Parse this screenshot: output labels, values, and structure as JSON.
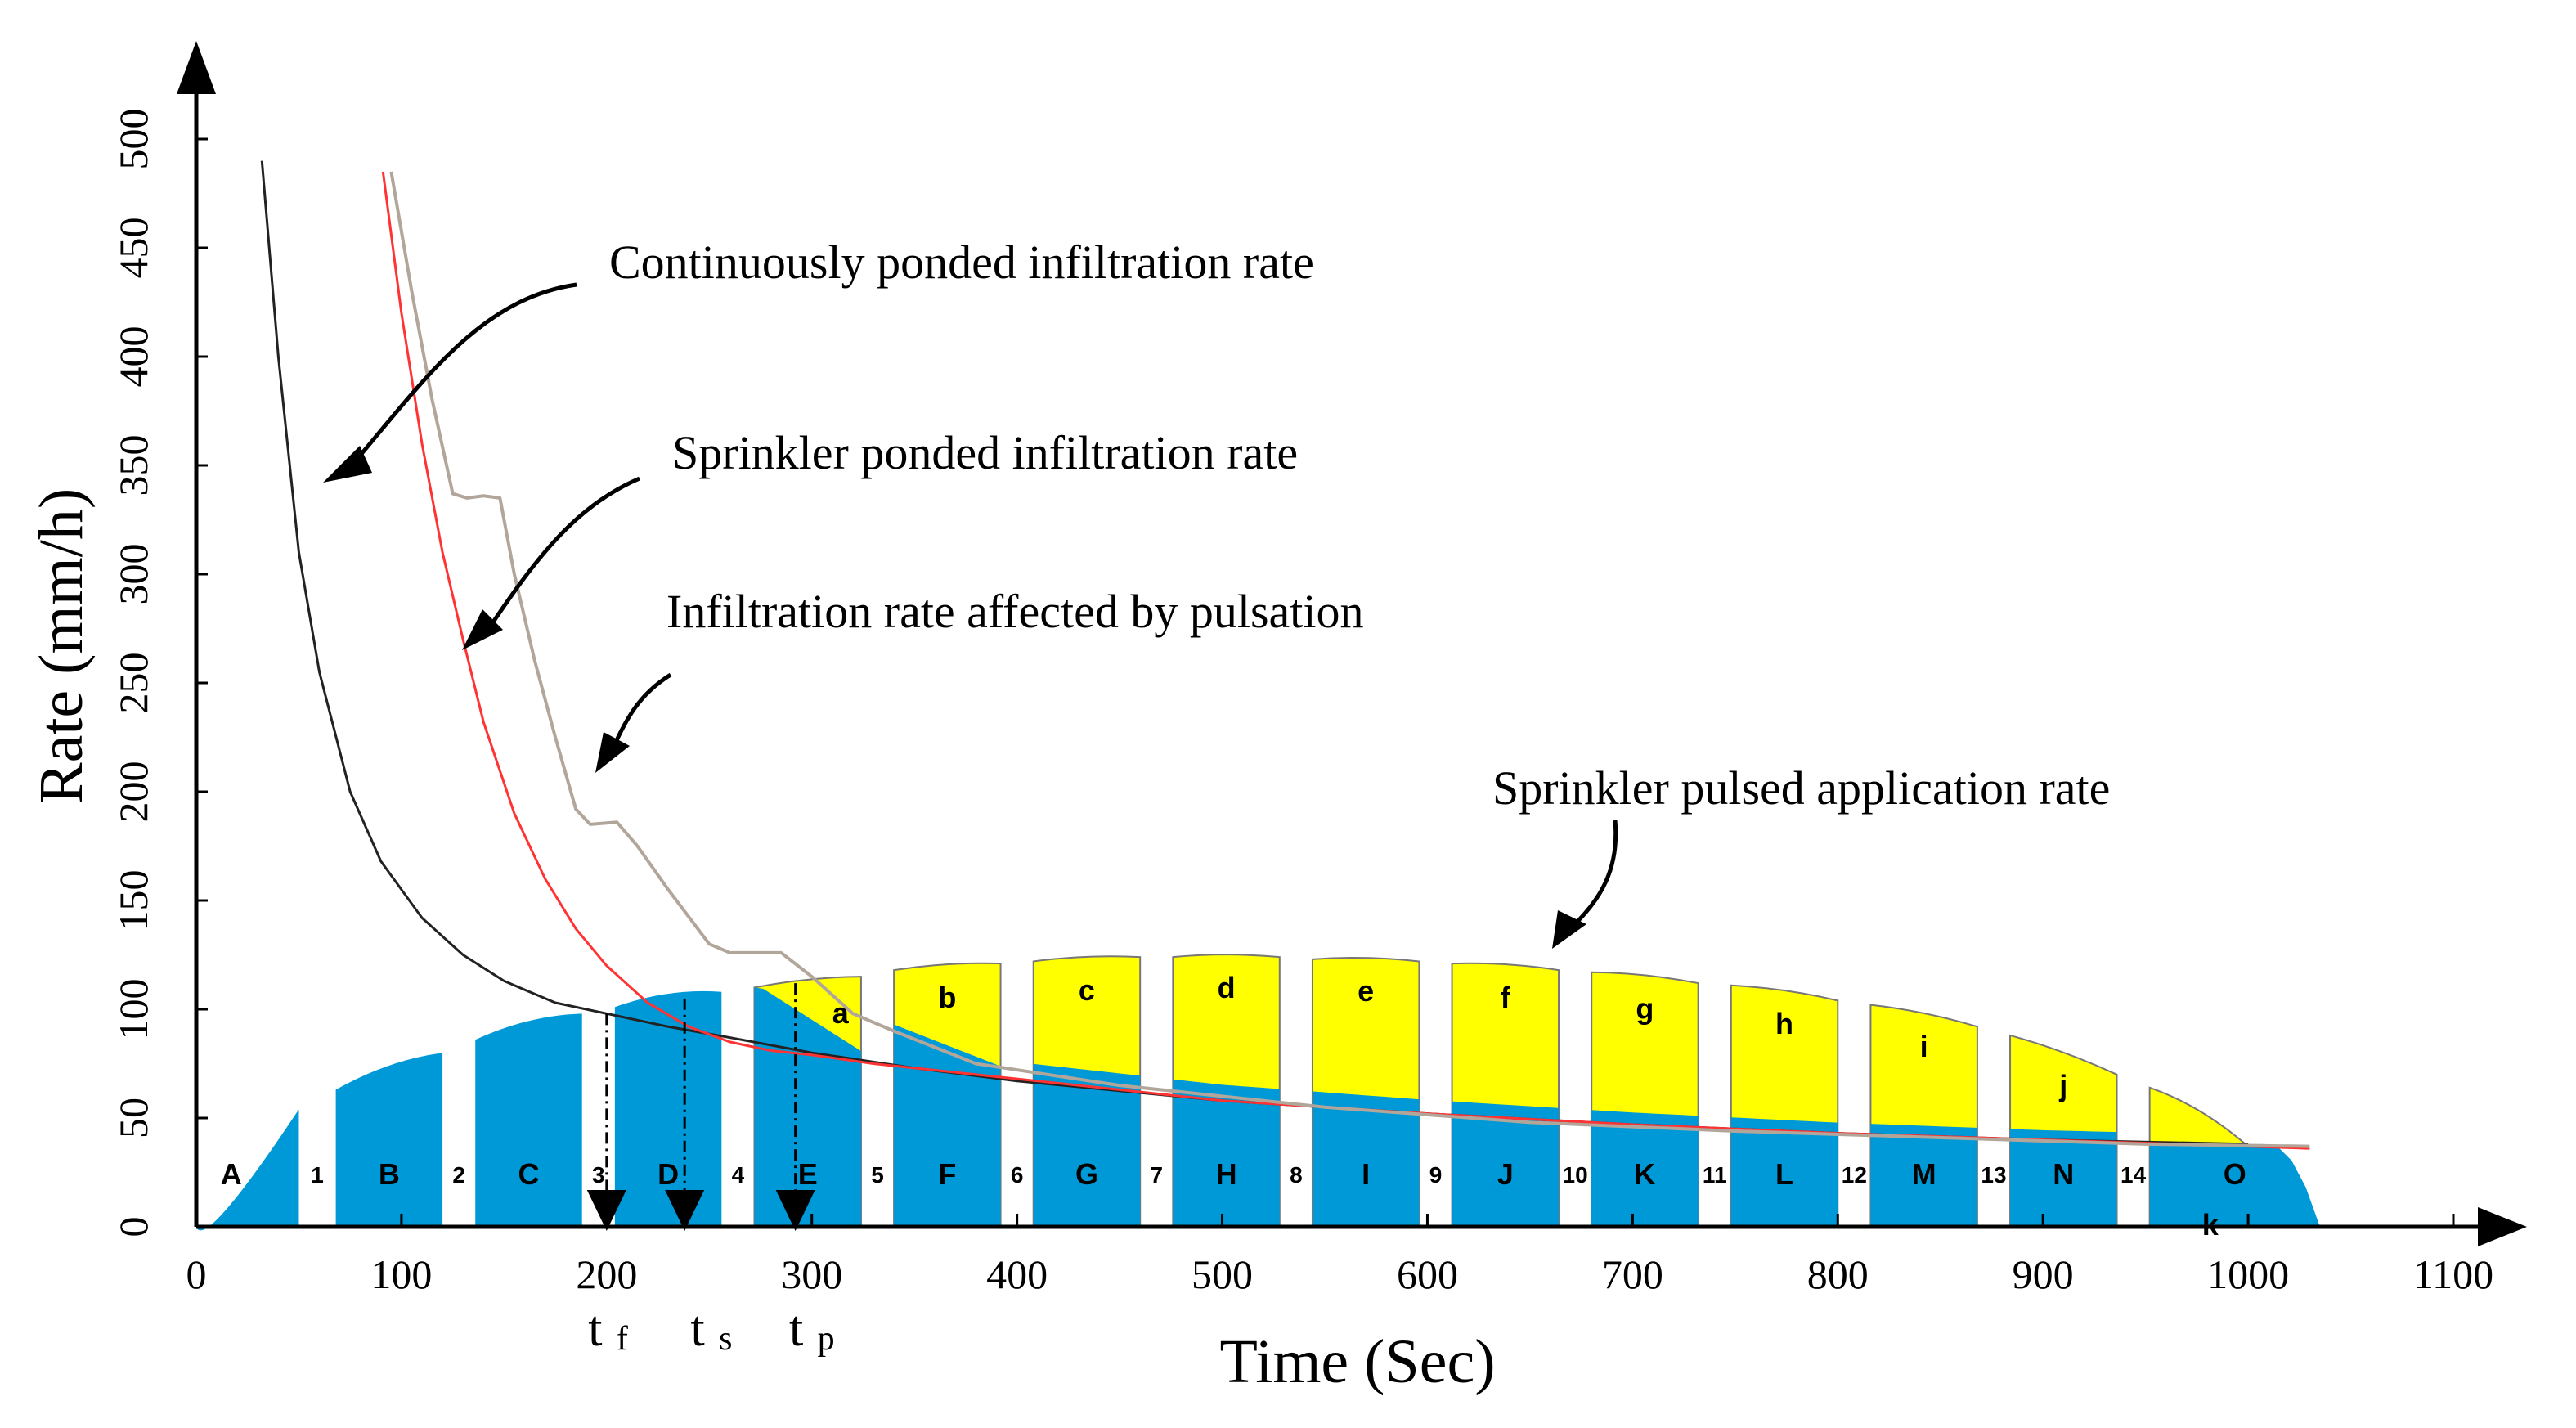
{
  "chart_data": {
    "type": "area",
    "xlabel": "Time (Sec)",
    "ylabel": "Rate (mm/h)",
    "xlim": [
      0,
      1100
    ],
    "ylim": [
      0,
      500
    ],
    "x_ticks": [
      0,
      100,
      200,
      300,
      400,
      500,
      600,
      700,
      800,
      900,
      1000,
      1100
    ],
    "y_ticks": [
      0,
      50,
      100,
      150,
      200,
      250,
      300,
      350,
      400,
      450,
      500
    ],
    "colors": {
      "application": "#0099d8",
      "excess": "#ffff00",
      "continuous_curve": "#222222",
      "sprinkler_curve": "#ff3333",
      "pulsation_curve": "#b2a69a"
    },
    "annotations": [
      {
        "id": "continuous",
        "text": "Continuously ponded infiltration rate"
      },
      {
        "id": "sprinkler",
        "text": "Sprinkler  ponded infiltration rate"
      },
      {
        "id": "pulsation",
        "text": "Infiltration rate affected by pulsation"
      },
      {
        "id": "application",
        "text": "Sprinkler  pulsed application rate"
      }
    ],
    "time_markers": [
      {
        "main": "t",
        "sub": "f",
        "x": 200
      },
      {
        "main": "t",
        "sub": "s",
        "x": 238
      },
      {
        "main": "t",
        "sub": "p",
        "x": 292
      }
    ],
    "series": [
      {
        "name": "Continuously ponded infiltration rate",
        "x": [
          32,
          40,
          50,
          60,
          75,
          90,
          110,
          130,
          150,
          175,
          200,
          230,
          260,
          300,
          350,
          400,
          500,
          600,
          700,
          800,
          900,
          1000
        ],
        "values": [
          490,
          400,
          310,
          255,
          200,
          168,
          142,
          125,
          113,
          103,
          98,
          92,
          87,
          80,
          73,
          67,
          58,
          52,
          47,
          43,
          40,
          38
        ]
      },
      {
        "name": "Sprinkler ponded infiltration rate",
        "x": [
          91,
          100,
          110,
          120,
          130,
          140,
          155,
          170,
          185,
          200,
          220,
          240,
          260,
          280,
          300,
          330,
          360,
          400,
          450,
          500,
          600,
          700,
          800,
          900,
          1000,
          1030
        ],
        "values": [
          485,
          420,
          360,
          310,
          270,
          232,
          190,
          160,
          137,
          120,
          103,
          92,
          85,
          81,
          79,
          75,
          72,
          68,
          63,
          58,
          52,
          47,
          43,
          40,
          37,
          36
        ]
      },
      {
        "name": "Infiltration rate affected by pulsation",
        "x": [
          95,
          105,
          115,
          125,
          132,
          140,
          148,
          155,
          165,
          175,
          185,
          192,
          205,
          215,
          230,
          250,
          260,
          270,
          285,
          300,
          320,
          340,
          380,
          450,
          550,
          650,
          750,
          850,
          950,
          1030
        ],
        "values": [
          485,
          430,
          380,
          337,
          335,
          336,
          335,
          300,
          260,
          225,
          192,
          185,
          186,
          175,
          155,
          130,
          126,
          126,
          126,
          115,
          98,
          90,
          75,
          65,
          55,
          48,
          44,
          41,
          38,
          37
        ]
      }
    ],
    "application_pulses": [
      {
        "label": "A",
        "start": 0,
        "end": 50,
        "h_start": 0,
        "h_end": 54
      },
      {
        "label": "B",
        "start": 68,
        "end": 120,
        "h_start": 63,
        "h_end": 80
      },
      {
        "label": "C",
        "start": 136,
        "end": 188,
        "h_start": 86,
        "h_end": 98
      },
      {
        "label": "D",
        "start": 204,
        "end": 256,
        "h_start": 101,
        "h_end": 108
      },
      {
        "label": "E",
        "start": 272,
        "end": 324,
        "h_start": 110,
        "h_end": 115
      },
      {
        "label": "F",
        "start": 340,
        "end": 392,
        "h_start": 118,
        "h_end": 121
      },
      {
        "label": "G",
        "start": 408,
        "end": 460,
        "h_start": 122,
        "h_end": 124
      },
      {
        "label": "H",
        "start": 476,
        "end": 528,
        "h_start": 124,
        "h_end": 124
      },
      {
        "label": "I",
        "start": 544,
        "end": 596,
        "h_start": 123,
        "h_end": 122
      },
      {
        "label": "J",
        "start": 612,
        "end": 664,
        "h_start": 121,
        "h_end": 118
      },
      {
        "label": "K",
        "start": 680,
        "end": 732,
        "h_start": 117,
        "h_end": 112
      },
      {
        "label": "L",
        "start": 748,
        "end": 800,
        "h_start": 111,
        "h_end": 104
      },
      {
        "label": "M",
        "start": 816,
        "end": 868,
        "h_start": 102,
        "h_end": 92
      },
      {
        "label": "N",
        "start": 884,
        "end": 936,
        "h_start": 88,
        "h_end": 70
      },
      {
        "label": "O",
        "start": 952,
        "end": 1035,
        "h_start": 64,
        "h_end": 0
      }
    ],
    "excess_labels": [
      "a",
      "b",
      "c",
      "d",
      "e",
      "f",
      "g",
      "h",
      "i",
      "j",
      "k"
    ],
    "gap_labels": [
      "1",
      "2",
      "3",
      "4",
      "5",
      "6",
      "7",
      "8",
      "9",
      "10",
      "11",
      "12",
      "13",
      "14"
    ]
  }
}
